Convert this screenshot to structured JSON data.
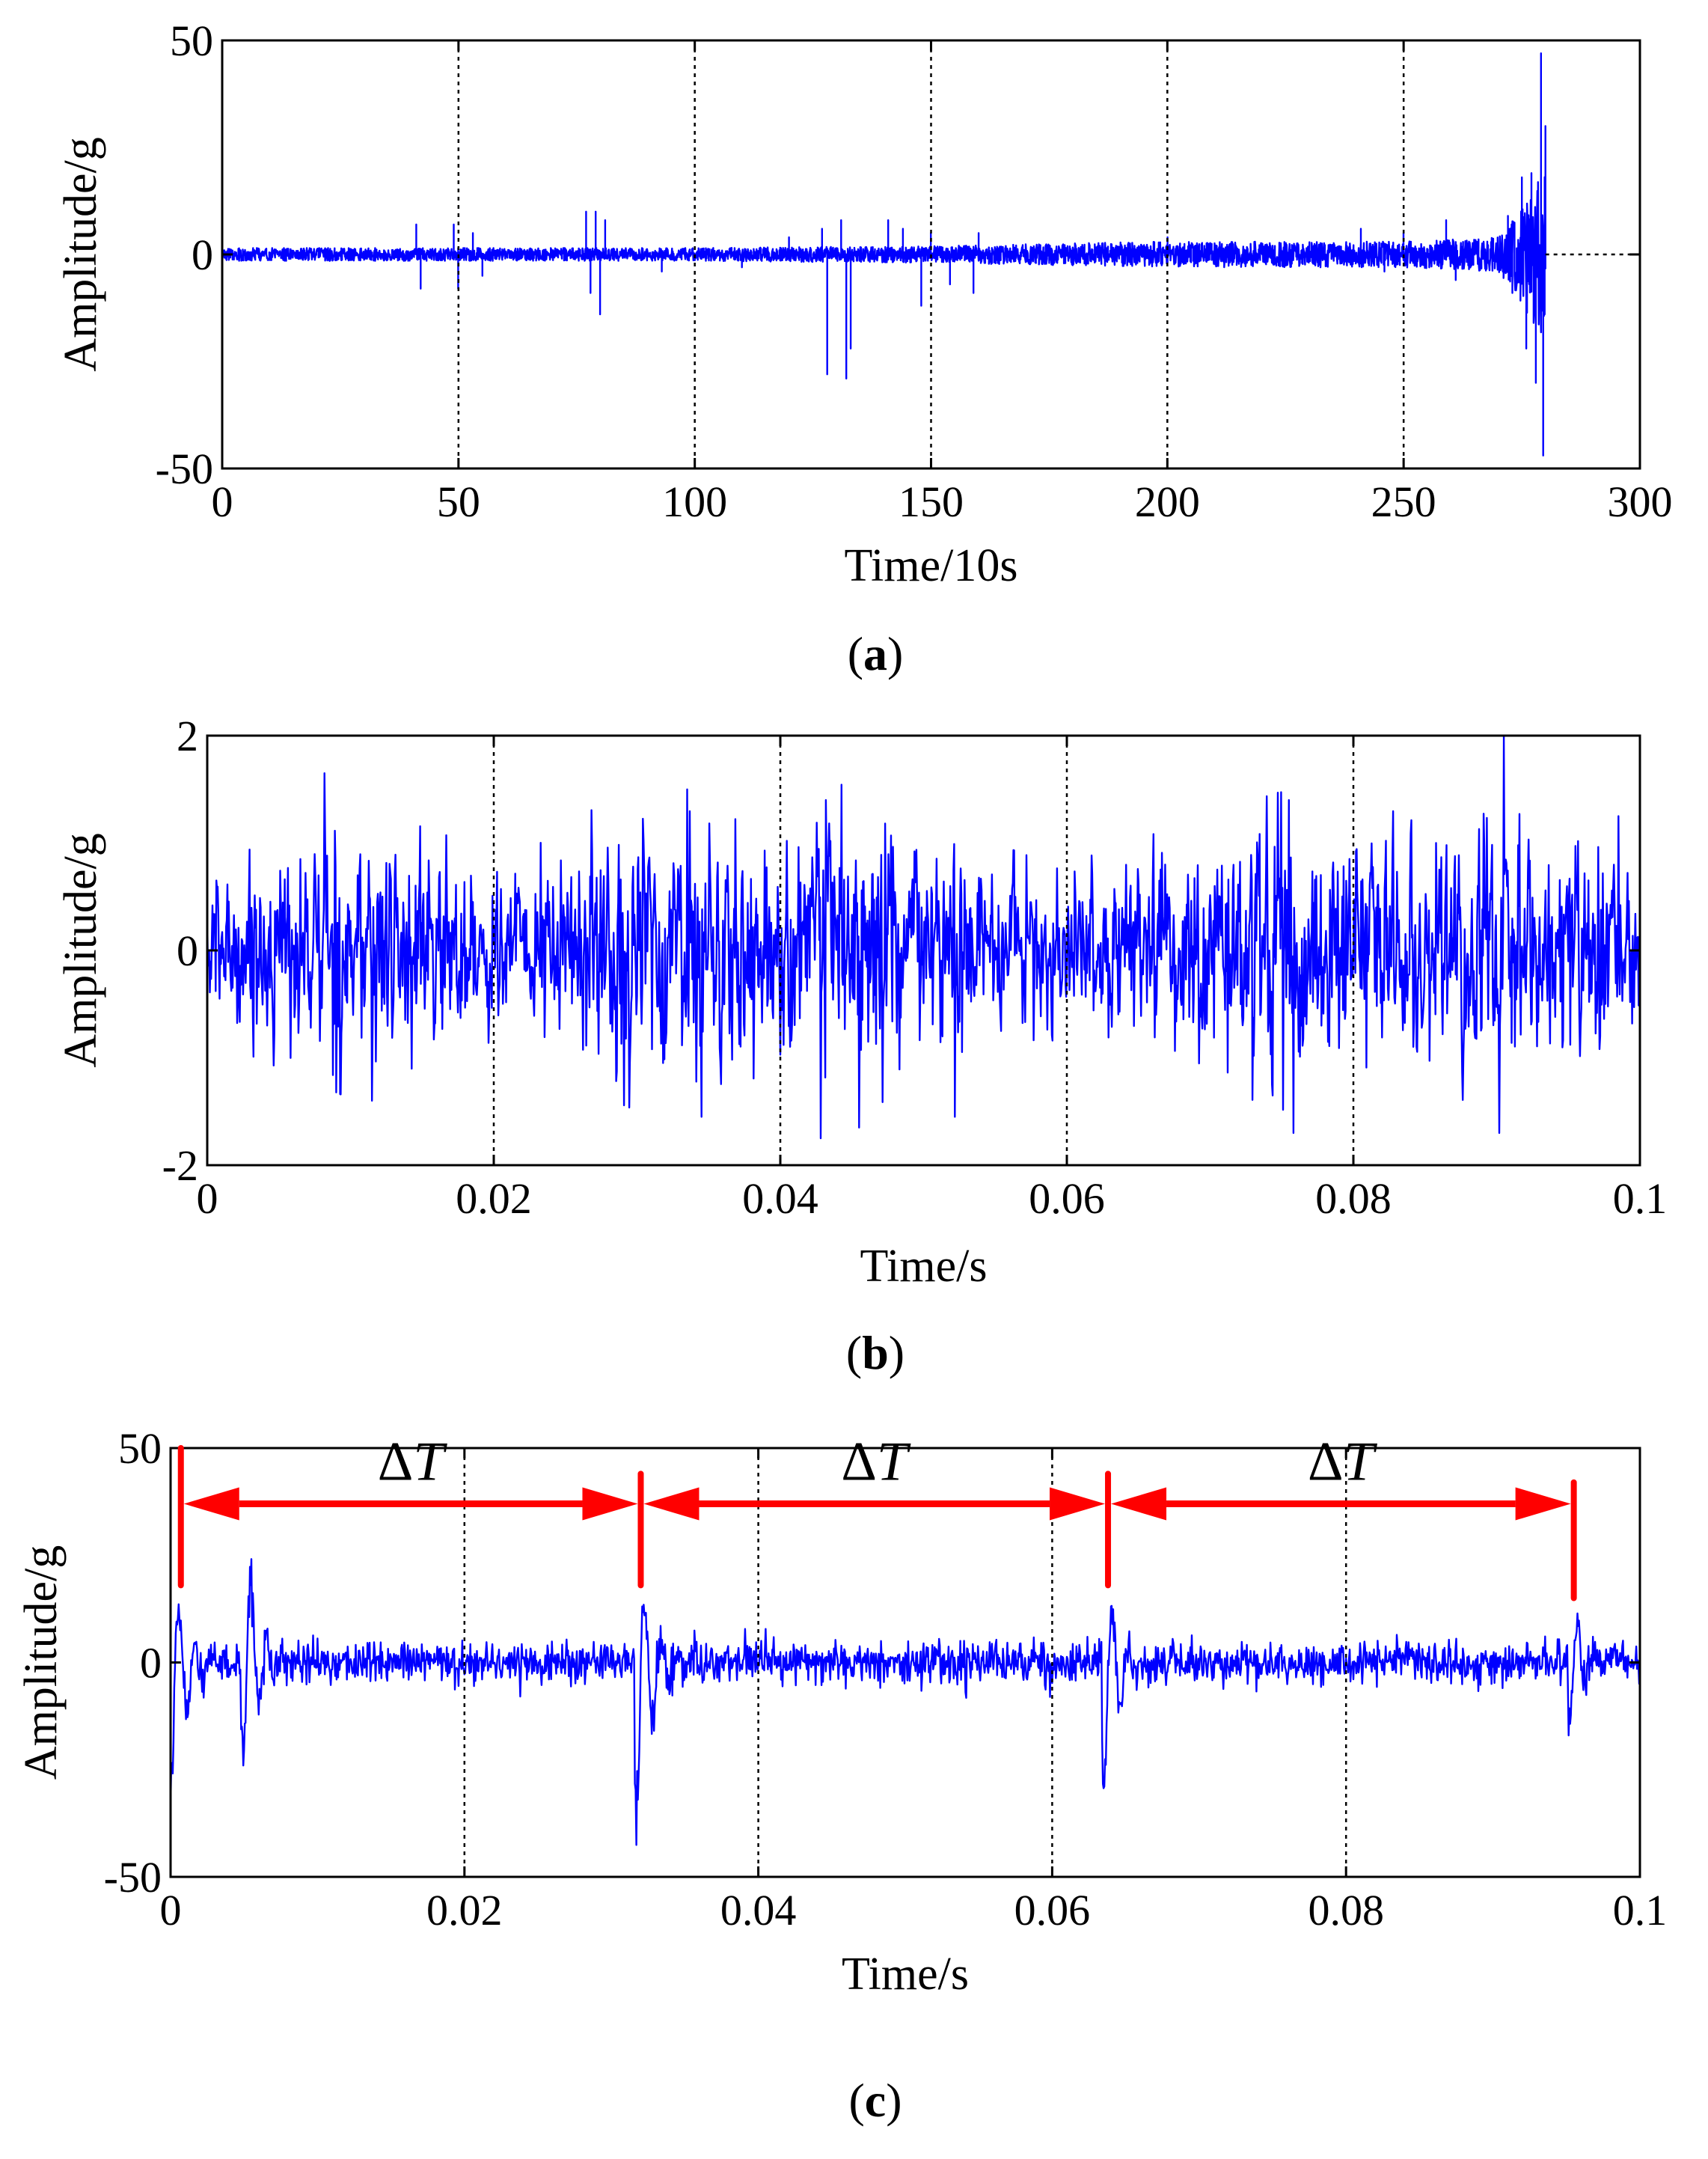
{
  "colors": {
    "signal": "#0000ff",
    "annotation": "#ff0000",
    "axes": "#000000"
  },
  "chart_data": [
    {
      "panel": "(a)",
      "caption_letter": "a",
      "type": "line",
      "xlabel": "Time/10s",
      "ylabel": "Amplitude/g",
      "xlim": [
        0,
        300
      ],
      "ylim": [
        -50,
        50
      ],
      "xticks": [
        0,
        50,
        100,
        150,
        200,
        250,
        300
      ],
      "yticks": [
        -50,
        0,
        50
      ],
      "xtick_labels": [
        "0",
        "50",
        "100",
        "150",
        "200",
        "250",
        "300"
      ],
      "ytick_labels": [
        "-50",
        "0",
        "50"
      ],
      "grid": "vertical dotted",
      "series": [
        {
          "color": "#0000ff",
          "signal_end_x": 280,
          "noise_envelope": [
            [
              0,
              1.5
            ],
            [
              100,
              1.5
            ],
            [
              150,
              2
            ],
            [
              200,
              3
            ],
            [
              250,
              3
            ],
            [
              270,
              4
            ],
            [
              275,
              12
            ],
            [
              280,
              20
            ]
          ],
          "spikes": [
            {
              "x": 41,
              "y": 7
            },
            {
              "x": 42,
              "y": -8
            },
            {
              "x": 49,
              "y": 7
            },
            {
              "x": 50,
              "y": -8
            },
            {
              "x": 53,
              "y": 5
            },
            {
              "x": 55,
              "y": -5
            },
            {
              "x": 77,
              "y": 10
            },
            {
              "x": 78,
              "y": -9
            },
            {
              "x": 79,
              "y": 10
            },
            {
              "x": 80,
              "y": -14
            },
            {
              "x": 81,
              "y": 8
            },
            {
              "x": 93,
              "y": -4
            },
            {
              "x": 110,
              "y": -3
            },
            {
              "x": 120,
              "y": 4
            },
            {
              "x": 127,
              "y": 6
            },
            {
              "x": 128,
              "y": -28
            },
            {
              "x": 131,
              "y": 8
            },
            {
              "x": 132,
              "y": -29
            },
            {
              "x": 133,
              "y": -22
            },
            {
              "x": 141,
              "y": 8
            },
            {
              "x": 144,
              "y": 6
            },
            {
              "x": 148,
              "y": -12
            },
            {
              "x": 150,
              "y": 5
            },
            {
              "x": 154,
              "y": -7
            },
            {
              "x": 159,
              "y": -9
            },
            {
              "x": 160,
              "y": 5
            },
            {
              "x": 200,
              "y": 4
            },
            {
              "x": 241,
              "y": 6
            },
            {
              "x": 246,
              "y": -4
            },
            {
              "x": 250,
              "y": 5
            },
            {
              "x": 259,
              "y": 8
            },
            {
              "x": 261,
              "y": -6
            },
            {
              "x": 272,
              "y": 9
            },
            {
              "x": 273,
              "y": -9
            },
            {
              "x": 275,
              "y": 18
            },
            {
              "x": 276,
              "y": -22
            },
            {
              "x": 277,
              "y": 19
            },
            {
              "x": 278,
              "y": -30
            },
            {
              "x": 279,
              "y": 47
            },
            {
              "x": 279.5,
              "y": -47
            },
            {
              "x": 280,
              "y": 30
            }
          ]
        }
      ]
    },
    {
      "panel": "(b)",
      "caption_letter": "b",
      "type": "line",
      "xlabel": "Time/s",
      "ylabel": "Amplitude/g",
      "xlim": [
        0,
        0.1
      ],
      "ylim": [
        -2,
        2
      ],
      "xticks": [
        0,
        0.02,
        0.04,
        0.06,
        0.08,
        0.1
      ],
      "yticks": [
        -2,
        0,
        2
      ],
      "xtick_labels": [
        "0",
        "0.02",
        "0.04",
        "0.06",
        "0.08",
        "0.1"
      ],
      "ytick_labels": [
        "-2",
        "0",
        "2"
      ],
      "grid": "vertical dotted",
      "series": [
        {
          "color": "#0000ff",
          "noise_envelope": [
            [
              0,
              0.7
            ],
            [
              0.01,
              1.2
            ],
            [
              0.02,
              0.8
            ],
            [
              0.03,
              1.3
            ],
            [
              0.035,
              1.1
            ],
            [
              0.04,
              1.0
            ],
            [
              0.045,
              1.4
            ],
            [
              0.05,
              1.0
            ],
            [
              0.06,
              0.7
            ],
            [
              0.07,
              1.1
            ],
            [
              0.078,
              1.4
            ],
            [
              0.085,
              1.0
            ],
            [
              0.09,
              1.4
            ],
            [
              0.1,
              0.9
            ]
          ],
          "spikes": [
            {
              "x": 0.0082,
              "y": 1.65
            },
            {
              "x": 0.0115,
              "y": -1.4
            },
            {
              "x": 0.0335,
              "y": 1.5
            },
            {
              "x": 0.0345,
              "y": -1.55
            },
            {
              "x": 0.0428,
              "y": -1.75
            },
            {
              "x": 0.0432,
              "y": 1.4
            },
            {
              "x": 0.0455,
              "y": -1.65
            },
            {
              "x": 0.0522,
              "y": -1.55
            },
            {
              "x": 0.0755,
              "y": 1.4
            },
            {
              "x": 0.0758,
              "y": -1.7
            },
            {
              "x": 0.0905,
              "y": 2.0
            },
            {
              "x": 0.0902,
              "y": -1.7
            },
            {
              "x": 0.0985,
              "y": 1.25
            }
          ]
        }
      ]
    },
    {
      "panel": "(c)",
      "caption_letter": "c",
      "type": "line",
      "xlabel": "Time/s",
      "ylabel": "Amplitude/g",
      "xlim": [
        0,
        0.1
      ],
      "ylim": [
        -50,
        50
      ],
      "xticks": [
        0,
        0.02,
        0.04,
        0.06,
        0.08,
        0.1
      ],
      "yticks": [
        -50,
        0,
        50
      ],
      "xtick_labels": [
        "0",
        "0.02",
        "0.04",
        "0.06",
        "0.08",
        "0.1"
      ],
      "ytick_labels": [
        "-50",
        "0",
        "50"
      ],
      "grid": "vertical dotted",
      "impacts": [
        {
          "x": 0.0003,
          "amp": 18,
          "neg": -28
        },
        {
          "x": 0.0052,
          "amp": 25,
          "neg": -20
        },
        {
          "x": 0.032,
          "amp": 20,
          "neg": -35
        },
        {
          "x": 0.0638,
          "amp": 18,
          "neg": -27
        },
        {
          "x": 0.0955,
          "amp": 12,
          "neg": -12
        }
      ],
      "noise_amplitude": 3,
      "annotations": [
        {
          "label_prefix": "Δ",
          "label_var": "T",
          "from": 0.0007,
          "to": 0.032
        },
        {
          "label_prefix": "Δ",
          "label_var": "T",
          "from": 0.032,
          "to": 0.0638
        },
        {
          "label_prefix": "Δ",
          "label_var": "T",
          "from": 0.0638,
          "to": 0.0955
        }
      ],
      "marker_tops": [
        50,
        44,
        44,
        42
      ],
      "marker_bottoms": [
        18,
        18,
        18,
        15
      ],
      "arrow_y": 37
    }
  ]
}
